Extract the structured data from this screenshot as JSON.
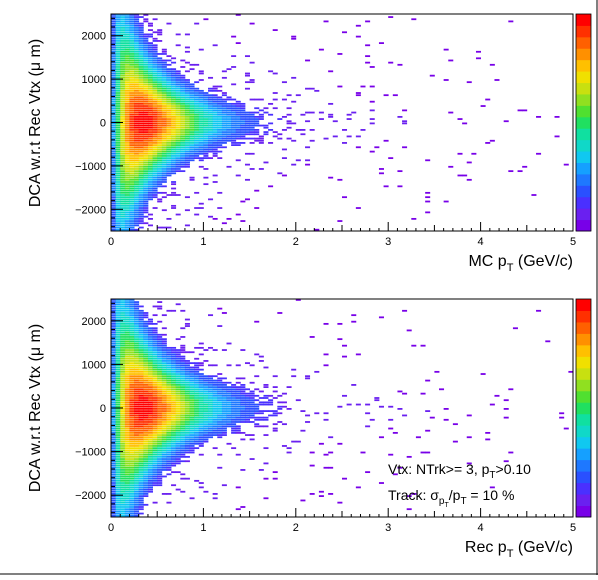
{
  "chart_data": [
    {
      "type": "heatmap",
      "xlabel_main": "MC p",
      "xlabel_sub": "T",
      "xlabel_unit": " (GeV/c)",
      "ylabel": "DCA w.r.t Rec Vtx (μ m)",
      "xlim": [
        0,
        5
      ],
      "ylim": [
        -2500,
        2500
      ],
      "x_ticks": [
        0,
        1,
        2,
        3,
        4,
        5
      ],
      "y_ticks": [
        -2000,
        -1000,
        0,
        1000,
        2000
      ],
      "grid": false,
      "peak": {
        "x": 0.35,
        "y": 0
      },
      "seed": 17
    },
    {
      "type": "heatmap",
      "xlabel_main": "Rec p",
      "xlabel_sub": "T",
      "xlabel_unit": " (GeV/c)",
      "ylabel": "DCA w.r.t Rec Vtx (μ m)",
      "xlim": [
        0,
        5
      ],
      "ylim": [
        -2500,
        2500
      ],
      "x_ticks": [
        0,
        1,
        2,
        3,
        4,
        5
      ],
      "y_ticks": [
        -2000,
        -1000,
        0,
        1000,
        2000
      ],
      "grid": false,
      "peak": {
        "x": 0.35,
        "y": 0
      },
      "seed": 41,
      "annotations": {
        "line1_pre": "Vtx: NTrk>= 3, p",
        "line1_sub": "T",
        "line1_post": ">0.10",
        "line2_pre": "Track: σ",
        "line2_sub": "p",
        "line2_subsub": "T",
        "line2_mid": "/p",
        "line2_sub2": "T",
        "line2_post": " = 10 %"
      }
    }
  ],
  "colors": {
    "palette": [
      "#7800e8",
      "#6a20f0",
      "#4a30ff",
      "#2a50ff",
      "#1e78ff",
      "#15a0ff",
      "#10c8f0",
      "#10d8c8",
      "#10e0a0",
      "#20e060",
      "#50e030",
      "#90e020",
      "#c8e010",
      "#f0e000",
      "#ffc000",
      "#ff9000",
      "#ff6000",
      "#ff3000",
      "#ff0000"
    ]
  }
}
